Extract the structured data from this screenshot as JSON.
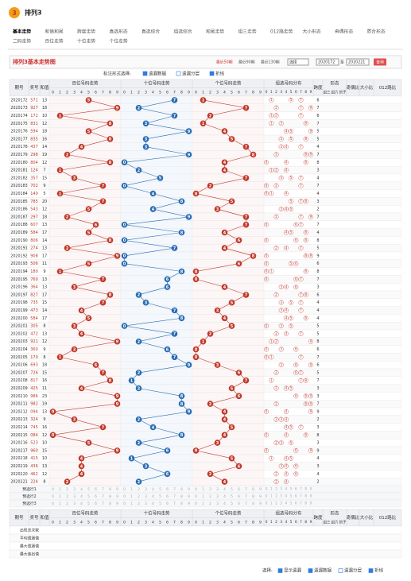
{
  "header": {
    "logo": "3",
    "title": "排列3"
  },
  "tabs": [
    "基本走势",
    "和值和尾",
    "跨度走势",
    "直选形态",
    "直选综合",
    "组选综合",
    "和尾走势",
    "组三走势",
    "012路走势",
    "大小形态",
    "奇偶形态",
    "质合形态",
    "二码走势",
    "百位走势",
    "十位走势",
    "个位走势"
  ],
  "panel": {
    "title": "排列3基本走势图",
    "ranges": [
      "最近50期",
      "最近90期",
      "最近130期"
    ],
    "select": "选择",
    "from": "2020172",
    "to_label": "至",
    "to": "2020221",
    "button": "查询"
  },
  "options": {
    "label": "标注形式选择:",
    "items": [
      "遗漏数据",
      "遗漏分层",
      "折线"
    ]
  },
  "table": {
    "headers": [
      "期号",
      "奖号",
      "和值",
      "百位号码走势",
      "十位号码走势",
      "个位号码走势",
      "组选号码分布",
      "跨度",
      "形态",
      "奇偶比",
      "大小比",
      "012路比"
    ],
    "shape_subs": [
      "组三",
      "组六",
      "豹子"
    ],
    "digits": [
      0,
      1,
      2,
      3,
      4,
      5,
      6,
      7,
      8,
      9
    ],
    "rows": [
      [
        "2020172",
        "571",
        13,
        6,
        [
          5,
          7,
          1
        ]
      ],
      [
        "2020173",
        "927",
        18,
        7,
        [
          9,
          2,
          7
        ]
      ],
      [
        "2020174",
        "172",
        10,
        6,
        [
          1,
          7,
          2
        ]
      ],
      [
        "2020175",
        "831",
        12,
        7,
        [
          8,
          3,
          1
        ]
      ],
      [
        "2020176",
        "594",
        18,
        5,
        [
          5,
          9,
          4
        ]
      ],
      [
        "2020177",
        "835",
        16,
        5,
        [
          8,
          3,
          5
        ]
      ],
      [
        "2020178",
        "437",
        14,
        4,
        [
          4,
          3,
          7
        ]
      ],
      [
        "2020179",
        "298",
        19,
        7,
        [
          2,
          9,
          8
        ]
      ],
      [
        "2020180",
        "804",
        12,
        8,
        [
          8,
          0,
          4
        ]
      ],
      [
        "2020181",
        "124",
        7,
        3,
        [
          1,
          2,
          4
        ]
      ],
      [
        "2020182",
        "357",
        15,
        4,
        [
          3,
          5,
          7
        ]
      ],
      [
        "2020183",
        "702",
        9,
        7,
        [
          7,
          0,
          2
        ]
      ],
      [
        "2020184",
        "140",
        5,
        4,
        [
          1,
          4,
          0
        ]
      ],
      [
        "2020185",
        "785",
        20,
        3,
        [
          7,
          8,
          5
        ]
      ],
      [
        "2020186",
        "543",
        12,
        2,
        [
          5,
          4,
          3
        ]
      ],
      [
        "2020187",
        "297",
        18,
        7,
        [
          2,
          9,
          7
        ]
      ],
      [
        "2020188",
        "607",
        13,
        7,
        [
          6,
          0,
          7
        ]
      ],
      [
        "2020189",
        "584",
        17,
        4,
        [
          5,
          8,
          4
        ]
      ],
      [
        "2020190",
        "806",
        14,
        8,
        [
          8,
          0,
          6
        ]
      ],
      [
        "2020191",
        "274",
        13,
        5,
        [
          2,
          7,
          4
        ]
      ],
      [
        "2020192",
        "908",
        17,
        9,
        [
          9,
          0,
          8
        ]
      ],
      [
        "2020193",
        "506",
        11,
        6,
        [
          5,
          0,
          6
        ]
      ],
      [
        "2020194",
        "180",
        9,
        8,
        [
          1,
          8,
          0
        ]
      ],
      [
        "2020195",
        "760",
        13,
        7,
        [
          7,
          6,
          0
        ]
      ],
      [
        "2020196",
        "364",
        13,
        3,
        [
          3,
          6,
          4
        ]
      ],
      [
        "2020197",
        "827",
        17,
        6,
        [
          8,
          2,
          7
        ]
      ],
      [
        "2020198",
        "735",
        15,
        4,
        [
          7,
          3,
          5
        ]
      ],
      [
        "2020199",
        "473",
        14,
        4,
        [
          4,
          7,
          3
        ]
      ],
      [
        "2020200",
        "584",
        17,
        4,
        [
          5,
          8,
          4
        ]
      ],
      [
        "2020201",
        "305",
        8,
        5,
        [
          3,
          0,
          5
        ]
      ],
      [
        "2020202",
        "472",
        13,
        5,
        [
          4,
          7,
          2
        ]
      ],
      [
        "2020203",
        "921",
        12,
        8,
        [
          9,
          2,
          1
        ]
      ],
      [
        "2020204",
        "360",
        9,
        6,
        [
          3,
          6,
          0
        ]
      ],
      [
        "2020205",
        "170",
        8,
        7,
        [
          1,
          7,
          0
        ]
      ],
      [
        "2020206",
        "693",
        18,
        6,
        [
          6,
          9,
          3
        ]
      ],
      [
        "2020207",
        "726",
        15,
        5,
        [
          7,
          2,
          6
        ]
      ],
      [
        "2020208",
        "817",
        16,
        7,
        [
          8,
          1,
          7
        ]
      ],
      [
        "2020209",
        "425",
        11,
        3,
        [
          4,
          2,
          5
        ]
      ],
      [
        "2020210",
        "986",
        23,
        3,
        [
          9,
          8,
          6
        ]
      ],
      [
        "2020211",
        "982",
        19,
        7,
        [
          9,
          8,
          2
        ]
      ],
      [
        "2020212",
        "094",
        13,
        9,
        [
          0,
          9,
          4
        ]
      ],
      [
        "2020213",
        "324",
        9,
        2,
        [
          3,
          2,
          4
        ]
      ],
      [
        "2020214",
        "745",
        16,
        3,
        [
          7,
          4,
          5
        ]
      ],
      [
        "2020215",
        "084",
        12,
        8,
        [
          0,
          8,
          4
        ]
      ],
      [
        "2020216",
        "523",
        10,
        3,
        [
          5,
          2,
          3
        ]
      ],
      [
        "2020217",
        "960",
        15,
        9,
        [
          9,
          6,
          0
        ]
      ],
      [
        "2020218",
        "415",
        10,
        4,
        [
          4,
          1,
          5
        ]
      ],
      [
        "2020219",
        "436",
        13,
        3,
        [
          4,
          3,
          6
        ]
      ],
      [
        "2020220",
        "462",
        12,
        4,
        [
          4,
          6,
          2
        ]
      ],
      [
        "2020221",
        "224",
        8,
        2,
        [
          2,
          2,
          4
        ]
      ]
    ],
    "preselect": [
      "预选行1",
      "预选行2",
      "预选行3"
    ],
    "stats": [
      "出现总次数",
      "平均遗漏值",
      "最大遗漏值",
      "最大连出值"
    ]
  },
  "bottom": {
    "label": "选择:",
    "items": [
      "显示遗漏",
      "遗漏数据",
      "遗漏分层",
      "折线"
    ]
  }
}
